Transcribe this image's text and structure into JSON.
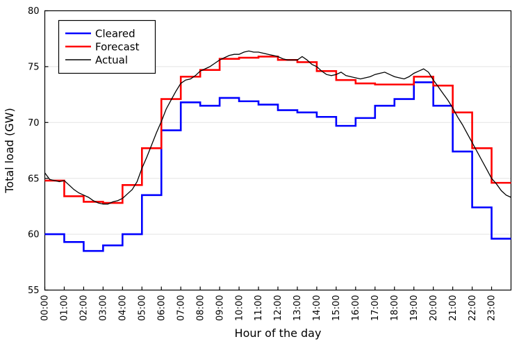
{
  "chart_data": {
    "type": "line",
    "title": "",
    "xlabel": "Hour of the day",
    "ylabel": "Total load (GW)",
    "ylim": [
      55,
      80
    ],
    "xlim_hours": [
      0,
      24
    ],
    "y_ticks": [
      55,
      60,
      65,
      70,
      75,
      80
    ],
    "x_ticklabels": [
      "00:00",
      "01:00",
      "02:00",
      "03:00",
      "04:00",
      "05:00",
      "06:00",
      "07:00",
      "08:00",
      "09:00",
      "10:00",
      "11:00",
      "12:00",
      "13:00",
      "14:00",
      "15:00",
      "16:00",
      "17:00",
      "18:00",
      "19:00",
      "20:00",
      "21:00",
      "22:00",
      "23:00"
    ],
    "grid": "horizontal-only",
    "gridline_color": "#e3e3e3",
    "frame_color": "#000000",
    "background": "#ffffff",
    "legend_position": "top-left",
    "series": [
      {
        "name": "Cleared",
        "color": "#0000ff",
        "style": "step-hourly",
        "line_width": 2.6,
        "values": [
          60.0,
          59.3,
          58.5,
          59.0,
          60.0,
          63.5,
          69.3,
          71.8,
          71.5,
          72.2,
          71.9,
          71.6,
          71.1,
          70.9,
          70.5,
          69.7,
          70.4,
          71.5,
          72.1,
          73.6,
          71.5,
          67.4,
          62.4,
          59.6
        ]
      },
      {
        "name": "Forecast",
        "color": "#ff0000",
        "style": "step-hourly",
        "line_width": 2.6,
        "values": [
          64.8,
          63.4,
          62.9,
          62.8,
          64.4,
          67.7,
          72.1,
          74.1,
          74.7,
          75.7,
          75.8,
          75.9,
          75.6,
          75.4,
          74.6,
          73.8,
          73.5,
          73.4,
          73.4,
          74.1,
          73.3,
          70.9,
          67.7,
          64.6
        ]
      },
      {
        "name": "Actual",
        "color": "#000000",
        "style": "line-quarter-hourly",
        "line_width": 1.3,
        "values": [
          65.5,
          64.9,
          64.8,
          64.7,
          64.8,
          64.4,
          64.0,
          63.7,
          63.5,
          63.3,
          63.0,
          62.8,
          62.7,
          62.7,
          62.9,
          63.0,
          63.2,
          63.6,
          64.0,
          64.7,
          65.9,
          66.9,
          68.0,
          69.1,
          70.1,
          71.2,
          72.0,
          72.8,
          73.5,
          73.8,
          73.9,
          74.2,
          74.6,
          74.8,
          75.0,
          75.3,
          75.6,
          75.8,
          76.0,
          76.1,
          76.1,
          76.3,
          76.4,
          76.3,
          76.3,
          76.2,
          76.1,
          76.0,
          75.9,
          75.7,
          75.6,
          75.6,
          75.6,
          75.9,
          75.6,
          75.2,
          75.0,
          74.6,
          74.3,
          74.2,
          74.3,
          74.5,
          74.2,
          74.1,
          74.0,
          73.9,
          74.0,
          74.1,
          74.3,
          74.4,
          74.5,
          74.3,
          74.1,
          74.0,
          73.9,
          74.1,
          74.4,
          74.6,
          74.8,
          74.5,
          73.8,
          73.2,
          72.6,
          72.0,
          71.3,
          70.5,
          69.8,
          69.0,
          68.2,
          67.4,
          66.6,
          65.8,
          65.0,
          64.5,
          63.9,
          63.5,
          63.3
        ]
      }
    ]
  }
}
